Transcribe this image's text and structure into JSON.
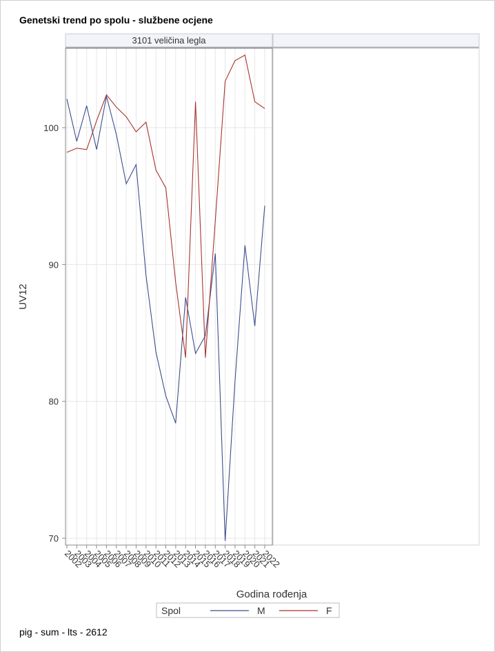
{
  "title": "Genetski trend po spolu - službene ocjene",
  "footer": "pig - sum - lts - 2612",
  "panel_title": "3101 veličina legla",
  "chart_data": {
    "type": "line",
    "title": "Genetski trend po spolu - službene ocjene",
    "xlabel": "Godina rođenja",
    "ylabel": "UV12",
    "x": [
      "2002",
      "2003",
      "2004",
      "2005",
      "2006",
      "2007",
      "2008",
      "2009",
      "2010",
      "2011",
      "2012",
      "2013",
      "2014",
      "2015",
      "2016",
      "2017",
      "2018",
      "2019",
      "2020",
      "2021",
      "2022"
    ],
    "ylim": [
      69.5,
      105.8
    ],
    "yticks": [
      70,
      80,
      90,
      100
    ],
    "grid": true,
    "legend_title": "Spol",
    "legend_position": "bottom",
    "series": [
      {
        "name": "M",
        "color": "#3b4d8c",
        "values": [
          102.1,
          99.0,
          101.6,
          98.4,
          102.3,
          99.5,
          95.9,
          97.3,
          89.2,
          83.6,
          80.4,
          78.4,
          87.6,
          83.5,
          84.8,
          90.8,
          69.8,
          81.5,
          91.4,
          85.5,
          94.3
        ]
      },
      {
        "name": "F",
        "color": "#a8322d",
        "values": [
          98.2,
          98.5,
          98.4,
          100.5,
          102.4,
          101.5,
          100.8,
          99.7,
          100.4,
          96.9,
          95.6,
          88.7,
          83.2,
          101.9,
          83.2,
          93.2,
          103.4,
          104.9,
          105.3,
          101.9,
          101.4
        ]
      }
    ]
  }
}
